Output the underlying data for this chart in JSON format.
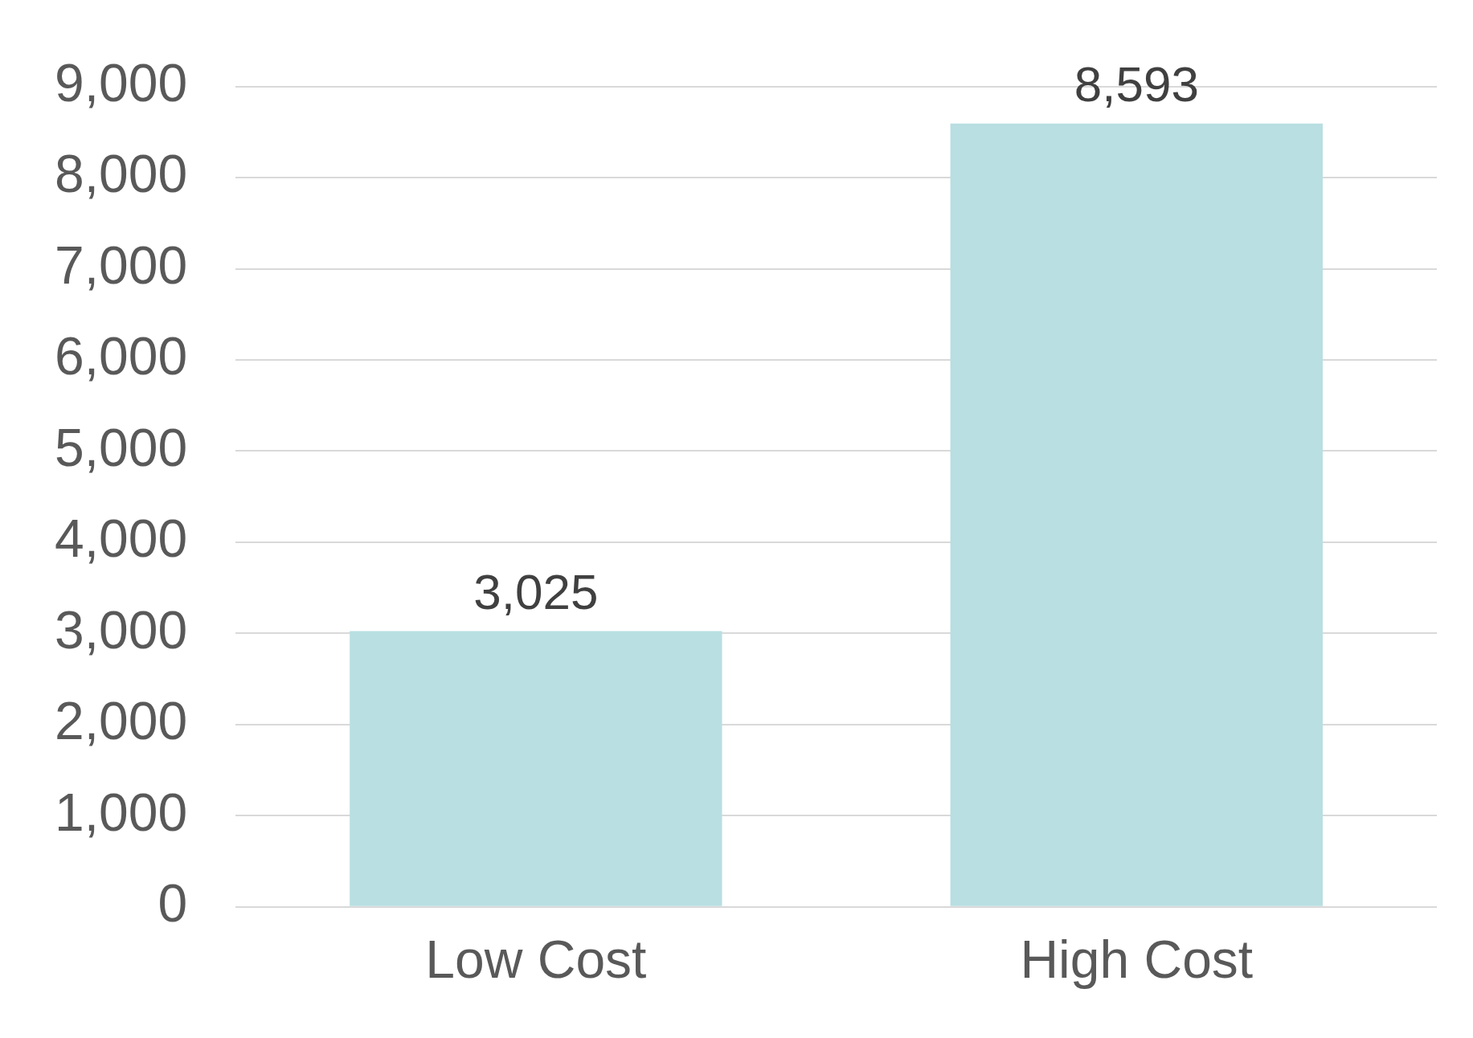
{
  "chart_data": {
    "type": "bar",
    "categories": [
      "Low Cost",
      "High Cost"
    ],
    "values": [
      3025,
      8593
    ],
    "color": "#b9dfe2",
    "ylim": [
      0,
      9000
    ],
    "yticks": [
      {
        "value": 0,
        "label": "0"
      },
      {
        "value": 1000,
        "label": "1,000"
      },
      {
        "value": 2000,
        "label": "2,000"
      },
      {
        "value": 3000,
        "label": "3,000"
      },
      {
        "value": 4000,
        "label": "4,000"
      },
      {
        "value": 5000,
        "label": "5,000"
      },
      {
        "value": 6000,
        "label": "6,000"
      },
      {
        "value": 7000,
        "label": "7,000"
      },
      {
        "value": 8000,
        "label": "8,000"
      },
      {
        "value": 9000,
        "label": "9,000"
      }
    ],
    "value_labels": [
      "3,025",
      "8,593"
    ],
    "grid": "y",
    "legend": false
  }
}
